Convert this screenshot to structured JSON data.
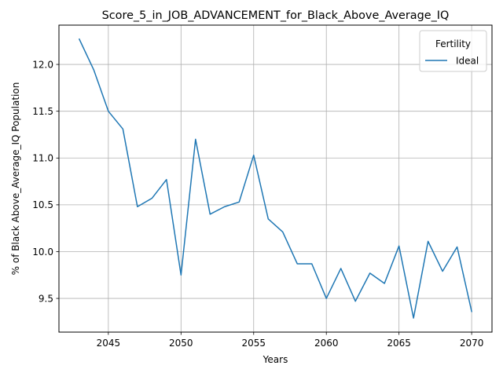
{
  "chart_data": {
    "type": "line",
    "title": "Score_5_in_JOB_ADVANCEMENT_for_Black_Above_Average_IQ",
    "xlabel": "Years",
    "ylabel": "% of Black Above_Average_IQ Population",
    "xlim": [
      2041.6,
      2071.4
    ],
    "ylim": [
      9.14,
      12.42
    ],
    "xticks": [
      2045,
      2050,
      2055,
      2060,
      2065,
      2070
    ],
    "yticks": [
      9.5,
      10.0,
      10.5,
      11.0,
      11.5,
      12.0
    ],
    "xtick_labels": [
      "2045",
      "2050",
      "2055",
      "2060",
      "2065",
      "2070"
    ],
    "ytick_labels": [
      "9.5",
      "10.0",
      "10.5",
      "11.0",
      "11.5",
      "12.0"
    ],
    "grid": true,
    "legend": {
      "title": "Fertility",
      "placement": "top-right",
      "entries": [
        "Ideal"
      ]
    },
    "series": [
      {
        "name": "Ideal",
        "color": "#1f77b4",
        "x": [
          2043,
          2044,
          2045,
          2046,
          2047,
          2048,
          2049,
          2050,
          2051,
          2052,
          2053,
          2054,
          2055,
          2056,
          2057,
          2058,
          2059,
          2060,
          2061,
          2062,
          2063,
          2064,
          2065,
          2066,
          2067,
          2068,
          2069,
          2070
        ],
        "y": [
          12.27,
          11.94,
          11.5,
          11.31,
          10.48,
          10.57,
          10.77,
          9.75,
          11.2,
          10.4,
          10.48,
          10.53,
          11.03,
          10.35,
          10.21,
          9.87,
          9.87,
          9.5,
          9.82,
          9.47,
          9.77,
          9.66,
          10.06,
          9.29,
          10.11,
          9.79,
          10.05,
          9.36
        ]
      }
    ]
  }
}
